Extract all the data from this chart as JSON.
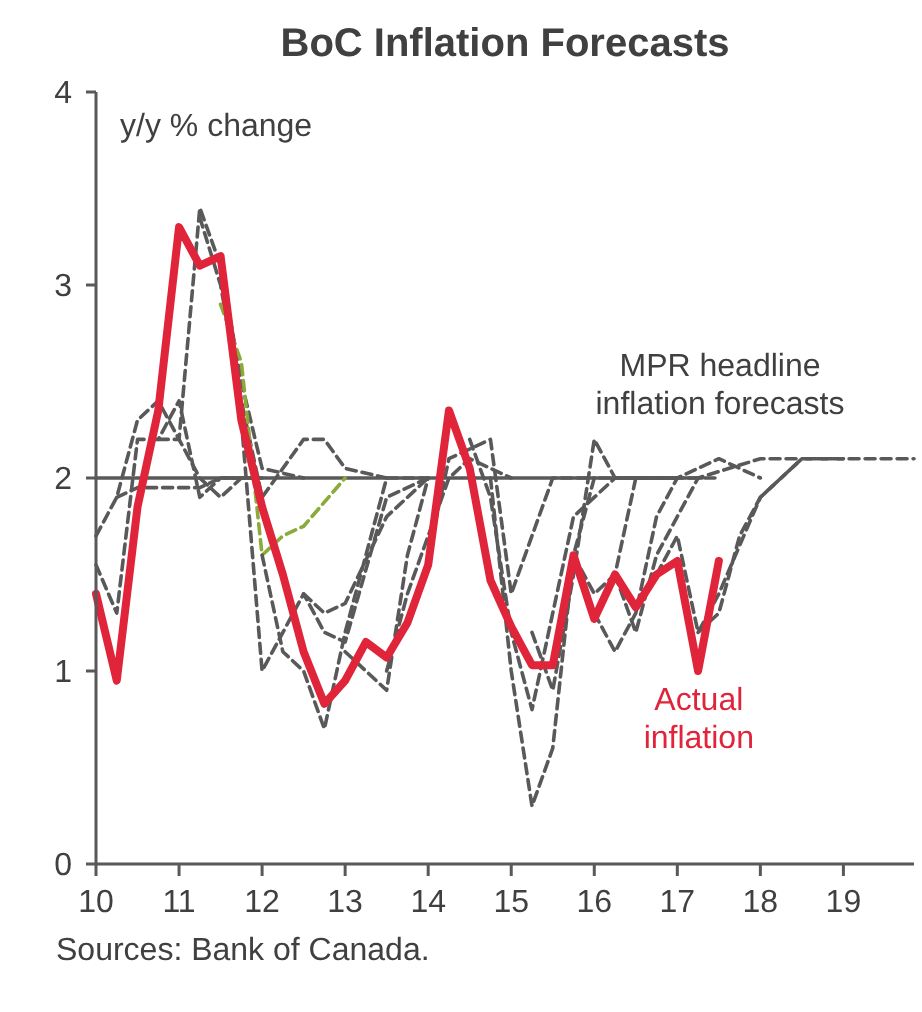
{
  "chart_data": {
    "type": "line",
    "title": "BoC Inflation Forecasts",
    "ylabel": "y/y % change",
    "xlim": [
      10,
      19.85
    ],
    "ylim": [
      0,
      4
    ],
    "xticks": [
      10,
      11,
      12,
      13,
      14,
      15,
      16,
      17,
      18,
      19
    ],
    "yticks": [
      0,
      1,
      2,
      3,
      4
    ],
    "grid": false,
    "marker": "none",
    "annotations": [
      "MPR headline inflation forecasts",
      "Sources: Bank of Canada."
    ],
    "series": [
      {
        "color": "#595959",
        "line_style": "solid",
        "x": [
          10,
          17.3
        ],
        "values": [
          2,
          2
        ]
      },
      {
        "color": "#595959",
        "line_style": "dashed",
        "x": [
          10,
          10.25,
          10.5,
          10.75,
          11,
          11.25,
          11.5,
          11.75,
          12
        ],
        "values": [
          1.7,
          1.9,
          2.3,
          2.4,
          2.2,
          2.0,
          1.9,
          2.0,
          2.0
        ]
      },
      {
        "color": "#595959",
        "line_style": "dashed",
        "x": [
          10,
          10.25,
          10.5,
          10.75,
          11,
          11.25,
          11.5,
          12
        ],
        "values": [
          1.55,
          1.3,
          2.2,
          2.2,
          2.4,
          1.9,
          2.0,
          2.0
        ]
      },
      {
        "color": "#595959",
        "line_style": "dashed",
        "x": [
          10.25,
          10.5,
          11,
          11.25,
          11.5,
          12
        ],
        "values": [
          1.9,
          1.95,
          1.95,
          1.95,
          2.0,
          2.0
        ]
      },
      {
        "color": "#595959",
        "line_style": "dashed",
        "x": [
          10.75,
          11,
          11.25,
          11.5,
          11.75,
          12,
          12.5
        ],
        "values": [
          2.2,
          2.2,
          3.4,
          3.1,
          2.5,
          2.05,
          2.0
        ]
      },
      {
        "color": "#595959",
        "line_style": "dashed",
        "x": [
          11.25,
          11.5,
          11.75,
          12,
          12.5,
          12.75,
          13,
          13.5
        ],
        "values": [
          3.35,
          3.0,
          2.4,
          1.9,
          2.2,
          2.2,
          2.05,
          2.0
        ]
      },
      {
        "color": "#8aaa3a",
        "line_style": "dashed",
        "x": [
          11.5,
          11.75,
          12,
          12.25,
          12.5,
          13
        ],
        "values": [
          2.9,
          2.6,
          1.6,
          1.7,
          1.75,
          2.0
        ]
      },
      {
        "color": "#595959",
        "line_style": "dashed",
        "x": [
          11.75,
          12,
          12.5,
          12.75,
          13,
          13.5,
          14
        ],
        "values": [
          2.3,
          1.0,
          1.4,
          1.2,
          1.15,
          1.9,
          2.0
        ]
      },
      {
        "color": "#595959",
        "line_style": "dashed",
        "x": [
          12,
          12.25,
          12.5,
          12.75,
          13,
          13.5,
          14
        ],
        "values": [
          1.6,
          1.1,
          1.0,
          0.7,
          1.2,
          2.0,
          2.0
        ]
      },
      {
        "color": "#595959",
        "line_style": "dashed",
        "x": [
          12.5,
          12.75,
          13,
          13.5,
          14
        ],
        "values": [
          1.4,
          1.3,
          1.35,
          1.8,
          2.0
        ]
      },
      {
        "color": "#595959",
        "line_style": "dashed",
        "x": [
          13,
          13.25,
          13.5,
          13.75,
          14
        ],
        "values": [
          1.1,
          1.0,
          0.9,
          1.6,
          2.0
        ]
      },
      {
        "color": "#595959",
        "line_style": "dashed",
        "x": [
          13.5,
          13.75,
          14.25,
          14.5,
          15
        ],
        "values": [
          1.0,
          1.4,
          2.0,
          2.1,
          2.0
        ]
      },
      {
        "color": "#595959",
        "line_style": "dashed",
        "x": [
          14,
          14.25,
          14.75,
          15,
          15.5,
          16
        ],
        "values": [
          1.6,
          2.1,
          2.2,
          1.4,
          2.0,
          2.0
        ]
      },
      {
        "color": "#595959",
        "line_style": "dashed",
        "x": [
          14.5,
          14.75,
          15,
          15.25,
          15.75,
          16.25,
          17
        ],
        "values": [
          2.2,
          1.9,
          1.2,
          0.8,
          1.8,
          2.0,
          2.0
        ]
      },
      {
        "color": "#595959",
        "line_style": "dashed",
        "x": [
          14.75,
          15,
          15.25,
          15.5,
          15.75,
          16,
          17
        ],
        "values": [
          2.0,
          1.0,
          0.3,
          0.6,
          1.6,
          2.0,
          2.0
        ]
      },
      {
        "color": "#595959",
        "line_style": "dashed",
        "x": [
          15.25,
          15.5,
          15.75,
          16,
          16.25,
          17
        ],
        "values": [
          1.2,
          0.9,
          1.5,
          2.2,
          2.0,
          2.0
        ]
      },
      {
        "color": "#595959",
        "line_style": "dashed",
        "x": [
          15.75,
          16,
          16.25,
          16.5,
          17,
          17.5
        ],
        "values": [
          1.6,
          1.4,
          1.5,
          2.0,
          2.0,
          2.0
        ]
      },
      {
        "color": "#595959",
        "line_style": "dashed",
        "x": [
          16,
          16.25,
          16.5,
          16.75,
          17,
          17.5,
          18
        ],
        "values": [
          1.3,
          1.1,
          1.3,
          1.8,
          2.0,
          2.1,
          2.0
        ]
      },
      {
        "color": "#595959",
        "line_style": "dashed",
        "x": [
          16.25,
          16.5,
          16.75,
          17,
          17.25,
          18,
          18.5
        ],
        "values": [
          1.5,
          1.2,
          1.6,
          1.8,
          2.0,
          2.1,
          2.1
        ]
      },
      {
        "color": "#595959",
        "line_style": "dashed",
        "x": [
          16.75,
          17,
          17.25,
          17.5,
          18,
          18.5,
          19
        ],
        "values": [
          1.5,
          1.7,
          1.2,
          1.4,
          1.9,
          2.1,
          2.1
        ]
      },
      {
        "color": "#595959",
        "line_style": "dashed",
        "x": [
          17.25,
          17.5,
          17.75,
          18,
          18.5,
          19.85
        ],
        "values": [
          1.2,
          1.3,
          1.7,
          1.9,
          2.1,
          2.1
        ]
      },
      {
        "name": "Actual inflation",
        "color": "#e0243a",
        "line_style": "solid",
        "x": [
          10,
          10.25,
          10.5,
          10.75,
          11,
          11.25,
          11.5,
          11.75,
          12,
          12.25,
          12.5,
          12.75,
          13,
          13.25,
          13.5,
          13.75,
          14,
          14.25,
          14.5,
          14.75,
          15,
          15.25,
          15.5,
          15.75,
          16,
          16.25,
          16.5,
          16.75,
          17,
          17.25,
          17.5
        ],
        "values": [
          1.4,
          0.95,
          1.85,
          2.35,
          3.3,
          3.1,
          3.15,
          2.3,
          1.85,
          1.5,
          1.1,
          0.83,
          0.95,
          1.15,
          1.07,
          1.25,
          1.55,
          2.35,
          2.05,
          1.47,
          1.23,
          1.03,
          1.03,
          1.6,
          1.27,
          1.5,
          1.33,
          1.5,
          1.57,
          1.0,
          1.57
        ]
      }
    ]
  }
}
